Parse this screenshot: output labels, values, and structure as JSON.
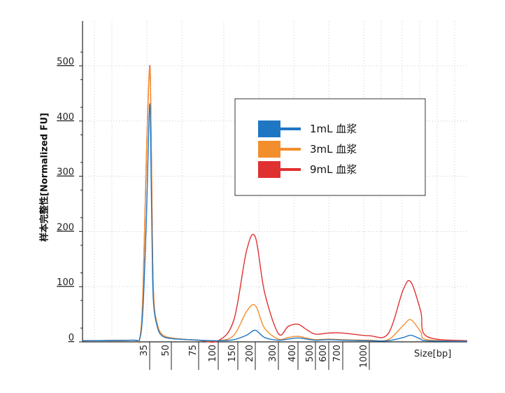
{
  "chart_data": {
    "type": "line",
    "title": "",
    "ylabel": "样本完整性[Normalized FU]",
    "xlabel": "Size[bp]",
    "ylim": [
      0,
      550
    ],
    "yticks": [
      0,
      100,
      200,
      300,
      400,
      500
    ],
    "xticks": [
      {
        "label": "35",
        "pos": 35
      },
      {
        "label": "50",
        "pos": 50
      },
      {
        "label": "75",
        "pos": 75
      },
      {
        "label": "100",
        "pos": 100
      },
      {
        "label": "150",
        "pos": 150
      },
      {
        "label": "200",
        "pos": 200
      },
      {
        "label": "300",
        "pos": 300
      },
      {
        "label": "400",
        "pos": 400
      },
      {
        "label": "500",
        "pos": 500
      },
      {
        "label": "600",
        "pos": 600
      },
      {
        "label": "700",
        "pos": 700
      },
      {
        "label": "1000",
        "pos": 1000
      }
    ],
    "grid": true,
    "legend_position": "top-right",
    "series": [
      {
        "name": "1mL 血浆",
        "color": "#1f77c4",
        "points": [
          [
            15,
            2
          ],
          [
            30,
            3
          ],
          [
            32,
            5
          ],
          [
            33,
            60
          ],
          [
            34,
            220
          ],
          [
            35,
            430
          ],
          [
            36,
            300
          ],
          [
            37,
            120
          ],
          [
            38,
            60
          ],
          [
            40,
            30
          ],
          [
            43,
            12
          ],
          [
            50,
            6
          ],
          [
            75,
            3
          ],
          [
            100,
            2
          ],
          [
            140,
            4
          ],
          [
            175,
            12
          ],
          [
            200,
            21
          ],
          [
            240,
            8
          ],
          [
            300,
            3
          ],
          [
            350,
            5
          ],
          [
            400,
            7
          ],
          [
            450,
            5
          ],
          [
            500,
            3
          ],
          [
            600,
            4
          ],
          [
            700,
            3
          ],
          [
            1000,
            2
          ],
          [
            1100,
            2
          ],
          [
            1180,
            8
          ],
          [
            1220,
            12
          ],
          [
            1270,
            5
          ],
          [
            1300,
            2
          ],
          [
            1600,
            1
          ]
        ]
      },
      {
        "name": "3mL 血浆",
        "color": "#f28e2b",
        "points": [
          [
            15,
            2
          ],
          [
            30,
            3
          ],
          [
            32,
            5
          ],
          [
            33,
            90
          ],
          [
            34,
            330
          ],
          [
            35,
            498
          ],
          [
            36,
            380
          ],
          [
            37,
            160
          ],
          [
            38,
            70
          ],
          [
            40,
            35
          ],
          [
            43,
            15
          ],
          [
            50,
            7
          ],
          [
            75,
            3
          ],
          [
            100,
            2
          ],
          [
            140,
            12
          ],
          [
            175,
            55
          ],
          [
            200,
            66
          ],
          [
            240,
            25
          ],
          [
            300,
            5
          ],
          [
            350,
            8
          ],
          [
            400,
            10
          ],
          [
            450,
            7
          ],
          [
            500,
            4
          ],
          [
            600,
            5
          ],
          [
            700,
            4
          ],
          [
            1000,
            3
          ],
          [
            1100,
            4
          ],
          [
            1180,
            30
          ],
          [
            1220,
            40
          ],
          [
            1270,
            18
          ],
          [
            1300,
            4
          ],
          [
            1600,
            1
          ]
        ]
      },
      {
        "name": "9mL 血浆",
        "color": "#e03131",
        "points": [
          [
            15,
            2
          ],
          [
            30,
            3
          ],
          [
            32,
            5
          ],
          [
            33,
            90
          ],
          [
            34,
            330
          ],
          [
            35,
            500
          ],
          [
            36,
            380
          ],
          [
            37,
            160
          ],
          [
            38,
            70
          ],
          [
            40,
            35
          ],
          [
            43,
            15
          ],
          [
            50,
            7
          ],
          [
            75,
            3
          ],
          [
            100,
            2
          ],
          [
            140,
            40
          ],
          [
            175,
            165
          ],
          [
            200,
            190
          ],
          [
            240,
            90
          ],
          [
            300,
            15
          ],
          [
            350,
            28
          ],
          [
            400,
            32
          ],
          [
            450,
            22
          ],
          [
            500,
            14
          ],
          [
            600,
            16
          ],
          [
            700,
            16
          ],
          [
            1000,
            11
          ],
          [
            1100,
            15
          ],
          [
            1180,
            95
          ],
          [
            1220,
            108
          ],
          [
            1270,
            55
          ],
          [
            1300,
            10
          ],
          [
            1600,
            2
          ]
        ]
      }
    ]
  }
}
